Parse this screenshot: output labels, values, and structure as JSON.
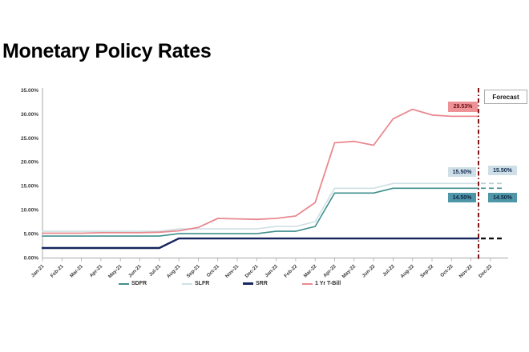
{
  "page_title": "Monetary Policy Rates",
  "chart_data": {
    "type": "line",
    "title": "Monetary Policy Rates",
    "categories": [
      "Jan-21",
      "Feb-21",
      "Mar-21",
      "Apr-21",
      "May-21",
      "Jun-21",
      "Jul-21",
      "Aug-21",
      "Sep-21",
      "Oct-21",
      "Nov-21",
      "Dec-21",
      "Jan-22",
      "Feb-22",
      "Mar-22",
      "Apr-22",
      "May-22",
      "Jun-22",
      "Jul-22",
      "Aug-22",
      "Sep-22",
      "Oct-22",
      "Nov-22",
      "Dec-22"
    ],
    "y_tick_labels": [
      "0.00%",
      "5.00%",
      "10.00%",
      "15.00%",
      "20.00%",
      "25.00%",
      "30.00%",
      "35.00%"
    ],
    "ylim": [
      0,
      35
    ],
    "grid": false,
    "legend_position": "bottom",
    "forecast_region_start": "Nov-22",
    "series": [
      {
        "name": "SDFR",
        "color": "#3f8f8d",
        "width": 1.6,
        "values": [
          4.5,
          4.5,
          4.5,
          4.5,
          4.5,
          4.5,
          4.5,
          5.0,
          5.0,
          5.0,
          5.0,
          5.0,
          5.5,
          5.5,
          6.5,
          13.5,
          13.5,
          13.5,
          14.5,
          14.5,
          14.5,
          14.5,
          14.5
        ],
        "forecast": 14.5,
        "forecast_color": "#3f8f8d"
      },
      {
        "name": "SLFR",
        "color": "#cfe0e4",
        "width": 1.6,
        "values": [
          5.5,
          5.5,
          5.5,
          5.5,
          5.5,
          5.5,
          5.5,
          6.0,
          6.0,
          6.0,
          6.0,
          6.0,
          6.5,
          6.5,
          7.5,
          14.5,
          14.5,
          14.5,
          15.5,
          15.5,
          15.5,
          15.5,
          15.5
        ],
        "forecast": 15.5,
        "forecast_color": "#b6ccd4"
      },
      {
        "name": "SRR",
        "color": "#16255c",
        "width": 2.4,
        "values": [
          2,
          2,
          2,
          2,
          2,
          2,
          2,
          4,
          4,
          4,
          4,
          4,
          4,
          4,
          4,
          4,
          4,
          4,
          4,
          4,
          4,
          4,
          4
        ],
        "forecast": 4.0,
        "forecast_color": "#111111"
      },
      {
        "name": "1 Yr T-Bill",
        "color": "#e9898f",
        "width": 1.8,
        "values": [
          5.1,
          5.1,
          5.1,
          5.2,
          5.2,
          5.2,
          5.3,
          5.6,
          6.3,
          8.2,
          8.1,
          8.0,
          8.2,
          8.7,
          11.5,
          24.0,
          24.3,
          23.5,
          29.0,
          31.0,
          29.8,
          29.53,
          29.53
        ],
        "forecast": null,
        "forecast_color": null
      }
    ]
  },
  "annotations": {
    "forecast_box": {
      "label": "Forecast"
    },
    "tbill_end": {
      "label": "29.53%",
      "bg": "#ef9298",
      "fg": "#6e1118"
    },
    "slfr_end": {
      "label": "15.50%",
      "bg": "#cfdfe7",
      "fg": "#102a4e"
    },
    "slfr_fc": {
      "label": "15.50%",
      "bg": "#cfdfe7",
      "fg": "#102a4e"
    },
    "sdfr_end": {
      "label": "14.50%",
      "bg": "#4f96a8",
      "fg": "#0c2240"
    },
    "sdfr_fc": {
      "label": "14.50%",
      "bg": "#4f96a8",
      "fg": "#0c2240"
    }
  },
  "colors": {
    "forecast_line": "#7e1416",
    "axis": "#a8a8a8",
    "tick_text": "#3b3b3b"
  }
}
